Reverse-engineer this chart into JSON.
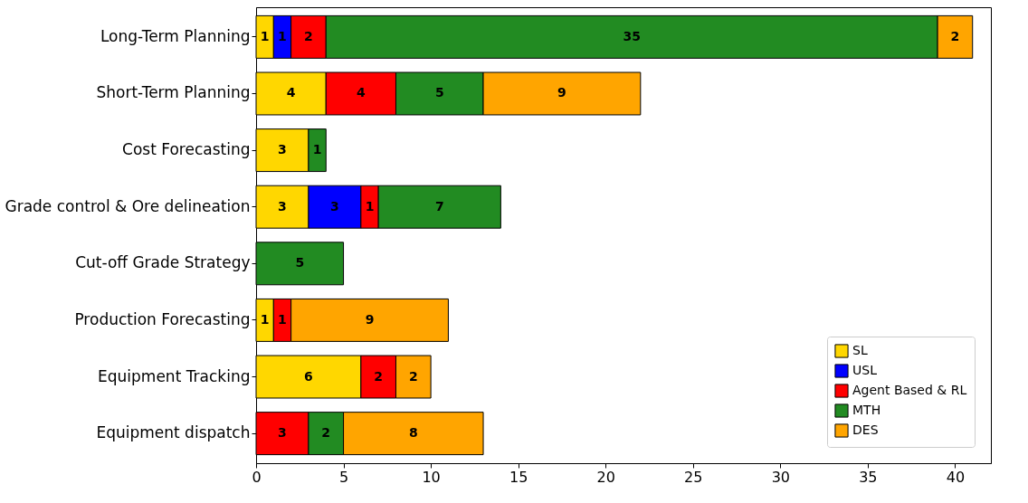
{
  "chart_data": {
    "type": "bar",
    "orientation": "horizontal",
    "stacked": true,
    "data_labels": true,
    "legend": "bottom right",
    "grid": false,
    "categories": [
      "Long-Term Planning",
      "Short-Term Planning",
      "Cost Forecasting",
      "Grade control & Ore delineation",
      "Cut-off Grade Strategy",
      "Production Forecasting",
      "Equipment Tracking",
      "Equipment dispatch"
    ],
    "series": [
      {
        "name": "SL",
        "color": "#ffd700",
        "values": [
          1,
          4,
          3,
          3,
          null,
          1,
          6,
          null
        ]
      },
      {
        "name": "USL",
        "color": "#0000ff",
        "values": [
          1,
          null,
          null,
          3,
          null,
          null,
          null,
          null
        ]
      },
      {
        "name": "Agent Based & RL",
        "color": "#ff0000",
        "values": [
          2,
          4,
          null,
          1,
          null,
          1,
          2,
          3
        ]
      },
      {
        "name": "MTH",
        "color": "#228b22",
        "values": [
          35,
          5,
          1,
          7,
          5,
          null,
          null,
          2
        ]
      },
      {
        "name": "DES",
        "color": "#ffa500",
        "values": [
          2,
          9,
          null,
          null,
          null,
          9,
          2,
          8
        ]
      }
    ],
    "xlim": [
      0,
      42.05
    ],
    "xticks": [
      0,
      5,
      10,
      15,
      20,
      25,
      30,
      35,
      40
    ]
  }
}
